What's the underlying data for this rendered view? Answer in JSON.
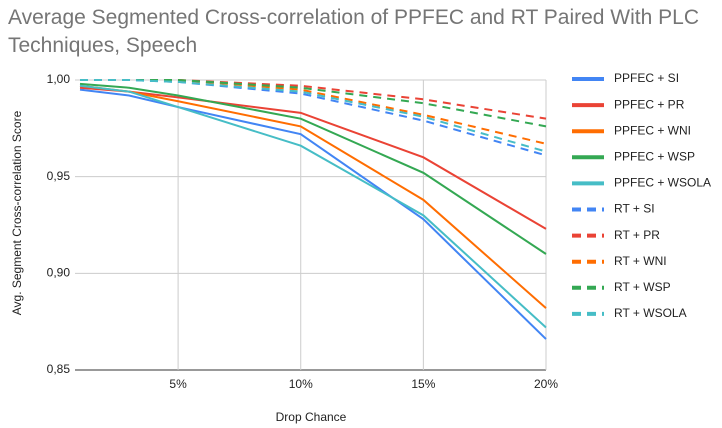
{
  "chart_data": {
    "type": "line",
    "title": "Average Segmented Cross-correlation of PPFEC and RT Paired With PLC Techniques, Speech",
    "x_label": "Drop Chance",
    "y_label": "Avg. Segment Cross-correlation Score",
    "x": [
      1,
      3,
      5,
      10,
      15,
      20
    ],
    "xlim": [
      1,
      20
    ],
    "xticks": [
      {
        "value": 5,
        "label": "5%"
      },
      {
        "value": 10,
        "label": "10%"
      },
      {
        "value": 15,
        "label": "15%"
      },
      {
        "value": 20,
        "label": "20%"
      }
    ],
    "ylim": [
      0.85,
      1.0
    ],
    "yticks": [
      {
        "value": 0.85,
        "label": "0,85"
      },
      {
        "value": 0.9,
        "label": "0,90"
      },
      {
        "value": 0.95,
        "label": "0,95"
      },
      {
        "value": 1.0,
        "label": "1,00"
      }
    ],
    "grid": true,
    "legend": "right",
    "series": [
      {
        "name": "PPFEC + SI",
        "color": "#4285f4",
        "style": "solid",
        "values": [
          0.995,
          0.992,
          0.986,
          0.972,
          0.928,
          0.866
        ]
      },
      {
        "name": "PPFEC + PR",
        "color": "#ea4335",
        "style": "solid",
        "values": [
          0.996,
          0.994,
          0.991,
          0.983,
          0.96,
          0.923
        ]
      },
      {
        "name": "PPFEC + WNI",
        "color": "#ff6d01",
        "style": "solid",
        "values": [
          0.997,
          0.994,
          0.989,
          0.976,
          0.938,
          0.882
        ]
      },
      {
        "name": "PPFEC + WSP",
        "color": "#34a853",
        "style": "solid",
        "values": [
          0.998,
          0.996,
          0.992,
          0.98,
          0.952,
          0.91
        ]
      },
      {
        "name": "PPFEC + WSOLA",
        "color": "#46bdc6",
        "style": "solid",
        "values": [
          0.997,
          0.994,
          0.986,
          0.966,
          0.93,
          0.872
        ]
      },
      {
        "name": "RT + SI",
        "color": "#4285f4",
        "style": "dashed",
        "values": [
          1.0,
          1.0,
          0.999,
          0.993,
          0.979,
          0.961
        ]
      },
      {
        "name": "RT + PR",
        "color": "#ea4335",
        "style": "dashed",
        "values": [
          1.0,
          1.0,
          1.0,
          0.997,
          0.99,
          0.98
        ]
      },
      {
        "name": "RT + WNI",
        "color": "#ff6d01",
        "style": "dashed",
        "values": [
          1.0,
          1.0,
          1.0,
          0.995,
          0.982,
          0.967
        ]
      },
      {
        "name": "RT + WSP",
        "color": "#34a853",
        "style": "dashed",
        "values": [
          1.0,
          1.0,
          1.0,
          0.996,
          0.988,
          0.976
        ]
      },
      {
        "name": "RT + WSOLA",
        "color": "#46bdc6",
        "style": "dashed",
        "values": [
          1.0,
          1.0,
          0.999,
          0.994,
          0.981,
          0.963
        ]
      }
    ]
  }
}
